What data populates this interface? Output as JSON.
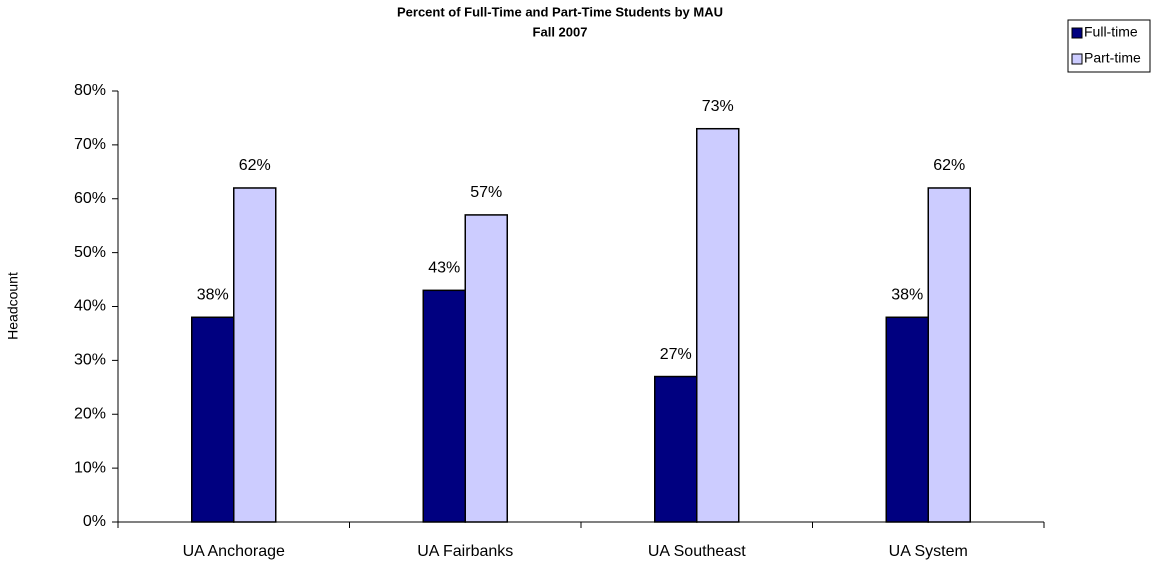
{
  "chart_data": {
    "type": "bar",
    "title": [
      "Percent of Full-Time and Part-Time Students by MAU",
      "Fall 2007"
    ],
    "y_label": "Headcount",
    "categories": [
      "UA Anchorage",
      "UA Fairbanks",
      "UA Southeast",
      "UA System"
    ],
    "series": [
      {
        "name": "Full-time",
        "color": "#000080",
        "values": [
          38,
          43,
          27,
          38
        ],
        "value_labels": [
          "38%",
          "43%",
          "27%",
          "38%"
        ]
      },
      {
        "name": "Part-time",
        "color": "#ccccff",
        "values": [
          62,
          57,
          73,
          62
        ],
        "value_labels": [
          "62%",
          "57%",
          "73%",
          "62%"
        ]
      }
    ],
    "ylim": [
      0,
      80
    ],
    "yticks": [
      {
        "value": 0,
        "label": "0%"
      },
      {
        "value": 10,
        "label": "10%"
      },
      {
        "value": 20,
        "label": "20%"
      },
      {
        "value": 30,
        "label": "30%"
      },
      {
        "value": 40,
        "label": "40%"
      },
      {
        "value": 50,
        "label": "50%"
      },
      {
        "value": 60,
        "label": "60%"
      },
      {
        "value": 70,
        "label": "70%"
      },
      {
        "value": 80,
        "label": "80%"
      }
    ],
    "legend": "top-right"
  }
}
